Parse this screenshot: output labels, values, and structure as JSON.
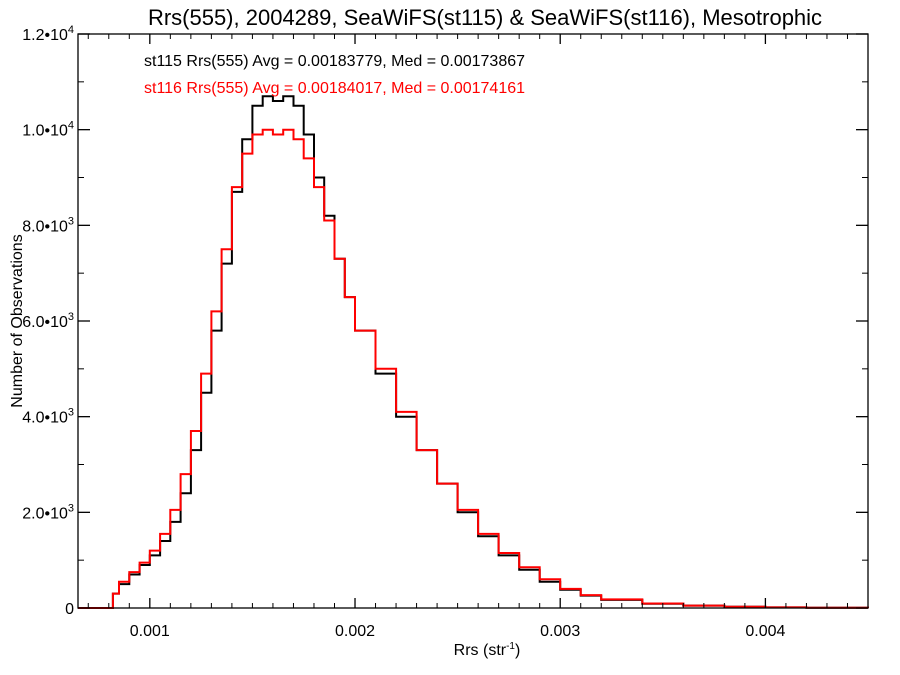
{
  "chart_data": {
    "type": "line",
    "title": "Rrs(555), 2004289, SeaWiFS(st115) & SeaWiFS(st116), Mesotrophic",
    "xlabel": "Rrs (str",
    "xlabel_sup": "-1",
    "xlabel_end": ")",
    "ylabel": "Number of Observations",
    "xlim": [
      0.00065,
      0.0045
    ],
    "ylim": [
      0,
      12000
    ],
    "x_ticks": [
      {
        "value": 0.001,
        "label": "0.001"
      },
      {
        "value": 0.002,
        "label": "0.002"
      },
      {
        "value": 0.003,
        "label": "0.003"
      },
      {
        "value": 0.004,
        "label": "0.004"
      }
    ],
    "y_ticks": [
      {
        "value": 0,
        "mantissa": "0",
        "exp": ""
      },
      {
        "value": 2000,
        "mantissa": "2.0•10",
        "exp": "3"
      },
      {
        "value": 4000,
        "mantissa": "4.0•10",
        "exp": "3"
      },
      {
        "value": 6000,
        "mantissa": "6.0•10",
        "exp": "3"
      },
      {
        "value": 8000,
        "mantissa": "8.0•10",
        "exp": "3"
      },
      {
        "value": 10000,
        "mantissa": "1.0•10",
        "exp": "4"
      },
      {
        "value": 12000,
        "mantissa": "1.2•10",
        "exp": "4"
      }
    ],
    "annotations": [
      {
        "text": "st115 Rrs(555) Avg = 0.00183779, Med = 0.00173867",
        "color": "#000000"
      },
      {
        "text": "st116 Rrs(555) Avg = 0.00184017, Med = 0.00174161",
        "color": "#ff0000"
      }
    ],
    "series": [
      {
        "color": "#000000",
        "x": [
          0.00065,
          0.0008,
          0.00082,
          0.00085,
          0.0009,
          0.00095,
          0.001,
          0.00105,
          0.0011,
          0.00115,
          0.0012,
          0.00125,
          0.0013,
          0.00135,
          0.0014,
          0.00145,
          0.0015,
          0.00155,
          0.0016,
          0.00165,
          0.0017,
          0.00175,
          0.0018,
          0.00185,
          0.0019,
          0.00195,
          0.002,
          0.0021,
          0.0022,
          0.0023,
          0.0024,
          0.0025,
          0.0026,
          0.0027,
          0.0028,
          0.0029,
          0.003,
          0.0031,
          0.0032,
          0.0034,
          0.0036,
          0.0038,
          0.004,
          0.0042,
          0.0045
        ],
        "y": [
          0,
          0,
          300,
          500,
          700,
          900,
          1100,
          1400,
          1800,
          2400,
          3300,
          4500,
          5800,
          7200,
          8700,
          9800,
          10500,
          10700,
          10600,
          10700,
          10500,
          9900,
          9000,
          8200,
          7300,
          6500,
          5800,
          4900,
          4000,
          3300,
          2600,
          2000,
          1500,
          1100,
          800,
          550,
          380,
          260,
          170,
          90,
          50,
          25,
          12,
          6,
          0
        ]
      },
      {
        "color": "#ff0000",
        "x": [
          0.00065,
          0.0008,
          0.00082,
          0.00085,
          0.0009,
          0.00095,
          0.001,
          0.00105,
          0.0011,
          0.00115,
          0.0012,
          0.00125,
          0.0013,
          0.00135,
          0.0014,
          0.00145,
          0.0015,
          0.00155,
          0.0016,
          0.00165,
          0.0017,
          0.00175,
          0.0018,
          0.00185,
          0.0019,
          0.00195,
          0.002,
          0.0021,
          0.0022,
          0.0023,
          0.0024,
          0.0025,
          0.0026,
          0.0027,
          0.0028,
          0.0029,
          0.003,
          0.0031,
          0.0032,
          0.0034,
          0.0036,
          0.0038,
          0.004,
          0.0042,
          0.0045
        ],
        "y": [
          0,
          0,
          300,
          550,
          750,
          950,
          1200,
          1550,
          2050,
          2800,
          3700,
          4900,
          6200,
          7500,
          8800,
          9500,
          9900,
          10000,
          9900,
          10000,
          9800,
          9400,
          8800,
          8100,
          7300,
          6500,
          5800,
          5000,
          4100,
          3300,
          2600,
          2050,
          1550,
          1150,
          850,
          600,
          400,
          270,
          180,
          95,
          50,
          25,
          12,
          6,
          0
        ]
      }
    ]
  }
}
